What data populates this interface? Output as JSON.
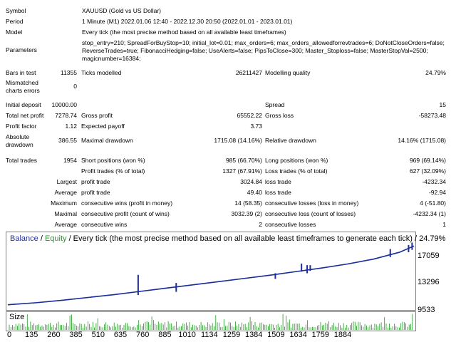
{
  "report": {
    "symbol_label": "Symbol",
    "symbol_value": "XAUUSD (Gold vs US Dollar)",
    "period_label": "Period",
    "period_value": "1 Minute (M1) 2022.01.06 12:40 - 2022.12.30 20:50 (2022.01.01 - 2023.01.01)",
    "model_label": "Model",
    "model_value": "Every tick (the most precise method based on all available least timeframes)",
    "params_label": "Parameters",
    "params_line1": "stop_entry=210; SpreadForBuyStop=10; initial_lot=0.01; max_orders=6; max_orders_allowedforrevtrades=6; DoNotCloseOrders=false;",
    "params_line2": "ReverseTrades=true; FibonacciHedging=false; UseAlerts=false; PipsToClose=300; Master_Stoploss=false; MasterStopVal=2500;",
    "params_line3": "magicnumber=16384;",
    "bars_label": "Bars in test",
    "bars_value": "11355",
    "ticks_label": "Ticks modelled",
    "ticks_value": "26211427",
    "quality_label": "Modelling quality",
    "quality_value": "24.79%",
    "mismatch_label1": "Mismatched",
    "mismatch_label2": "charts errors",
    "mismatch_value": "0",
    "deposit_label": "Initial deposit",
    "deposit_value": "10000.00",
    "spread_label": "Spread",
    "spread_value": "15",
    "netprofit_label": "Total net profit",
    "netprofit_value": "7278.74",
    "grossprofit_label": "Gross profit",
    "grossprofit_value": "65552.22",
    "grossloss_label": "Gross loss",
    "grossloss_value": "-58273.48",
    "pf_label": "Profit factor",
    "pf_value": "1.12",
    "payoff_label": "Expected payoff",
    "payoff_value": "3.73",
    "absdd_label1": "Absolute",
    "absdd_label2": "drawdown",
    "absdd_value": "386.55",
    "maxdd_label": "Maximal drawdown",
    "maxdd_value": "1715.08 (14.16%)",
    "reldd_label": "Relative drawdown",
    "reldd_value": "14.16% (1715.08)",
    "trades_label": "Total trades",
    "trades_value": "1954",
    "short_label": "Short positions (won %)",
    "short_value": "985 (66.70%)",
    "long_label": "Long positions (won %)",
    "long_value": "969 (69.14%)",
    "pt_label": "Profit trades (% of total)",
    "pt_value": "1327 (67.91%)",
    "lt_label": "Loss trades (% of total)",
    "lt_value": "627 (32.09%)",
    "largest_label": "Largest",
    "largest_pt_label": "profit trade",
    "largest_pt_value": "3024.84",
    "largest_lt_label": "loss trade",
    "largest_lt_value": "-4232.34",
    "average_label": "Average",
    "average_pt_label": "profit trade",
    "average_pt_value": "49.40",
    "average_lt_label": "loss trade",
    "average_lt_value": "-92.94",
    "maximum_label": "Maximum",
    "max_cw_label": "consecutive wins (profit in money)",
    "max_cw_value": "14 (58.35)",
    "max_cl_label": "consecutive losses (loss in money)",
    "max_cl_value": "4 (-51.80)",
    "maximal_label": "Maximal",
    "mxl_cp_label": "consecutive profit (count of wins)",
    "mxl_cp_value": "3032.39 (2)",
    "mxl_cl_label": "consecutive loss (count of losses)",
    "mxl_cl_value": "-4232.34 (1)",
    "avg2_label": "Average",
    "avg_cw_label": "consecutive wins",
    "avg_cw_value": "2",
    "avg_cl_label": "consecutive losses",
    "avg_cl_value": "1"
  },
  "chart": {
    "title_balance": "Balance",
    "title_sep1": " / ",
    "title_equity": "Equity",
    "title_rest": " / Every tick (the most precise method based on all available least timeframes to generate each tick) / 24.79%",
    "size_label": "Size",
    "colors": {
      "balance": "#1c2e9e",
      "equity": "#2e8b2e",
      "size": "#1a9a1a",
      "frame": "#808080"
    }
  },
  "chart_data": {
    "type": "line",
    "title": "Balance / Equity / Every tick (the most precise method based on all available least timeframes to generate each tick) / 24.79%",
    "xlabel": "",
    "ylabel": "",
    "y_ticks": [
      "17059",
      "13296",
      "9533"
    ],
    "x_ticks": [
      "0",
      "135",
      "260",
      "385",
      "510",
      "635",
      "760",
      "885",
      "1010",
      "1134",
      "1259",
      "1384",
      "1509",
      "1634",
      "1759",
      "1884"
    ],
    "ylim": [
      9533,
      18800
    ],
    "xlim": [
      0,
      1954
    ],
    "series": [
      {
        "name": "Balance",
        "x": [
          0,
          135,
          260,
          385,
          510,
          635,
          760,
          885,
          1010,
          1134,
          1259,
          1384,
          1509,
          1634,
          1759,
          1884,
          1954
        ],
        "values": [
          10000,
          10250,
          10550,
          10900,
          11250,
          11650,
          12050,
          12450,
          12850,
          13250,
          13650,
          14100,
          14550,
          15050,
          15650,
          16500,
          17280
        ]
      },
      {
        "name": "Equity",
        "x": [
          0,
          135,
          260,
          385,
          510,
          635,
          760,
          885,
          1010,
          1134,
          1259,
          1384,
          1509,
          1634,
          1759,
          1884,
          1954
        ],
        "values": [
          9990,
          10230,
          10530,
          10880,
          11230,
          11630,
          12030,
          12430,
          12830,
          13230,
          13630,
          14080,
          14530,
          15030,
          15630,
          16480,
          17260
        ]
      }
    ],
    "spikes": [
      {
        "x": 627,
        "low": 11200,
        "high": 13700
      },
      {
        "x": 810,
        "low": 11600,
        "high": 12700
      },
      {
        "x": 1287,
        "low": 13200,
        "high": 13900
      },
      {
        "x": 1413,
        "low": 14100,
        "high": 15100
      },
      {
        "x": 1440,
        "low": 13900,
        "high": 14900
      },
      {
        "x": 1455,
        "low": 14200,
        "high": 14900
      },
      {
        "x": 1840,
        "low": 15900,
        "high": 16900
      },
      {
        "x": 1928,
        "low": 16500,
        "high": 17400
      },
      {
        "x": 1945,
        "low": 16800,
        "high": 17700
      }
    ],
    "grid": false,
    "legend": "top-left"
  }
}
